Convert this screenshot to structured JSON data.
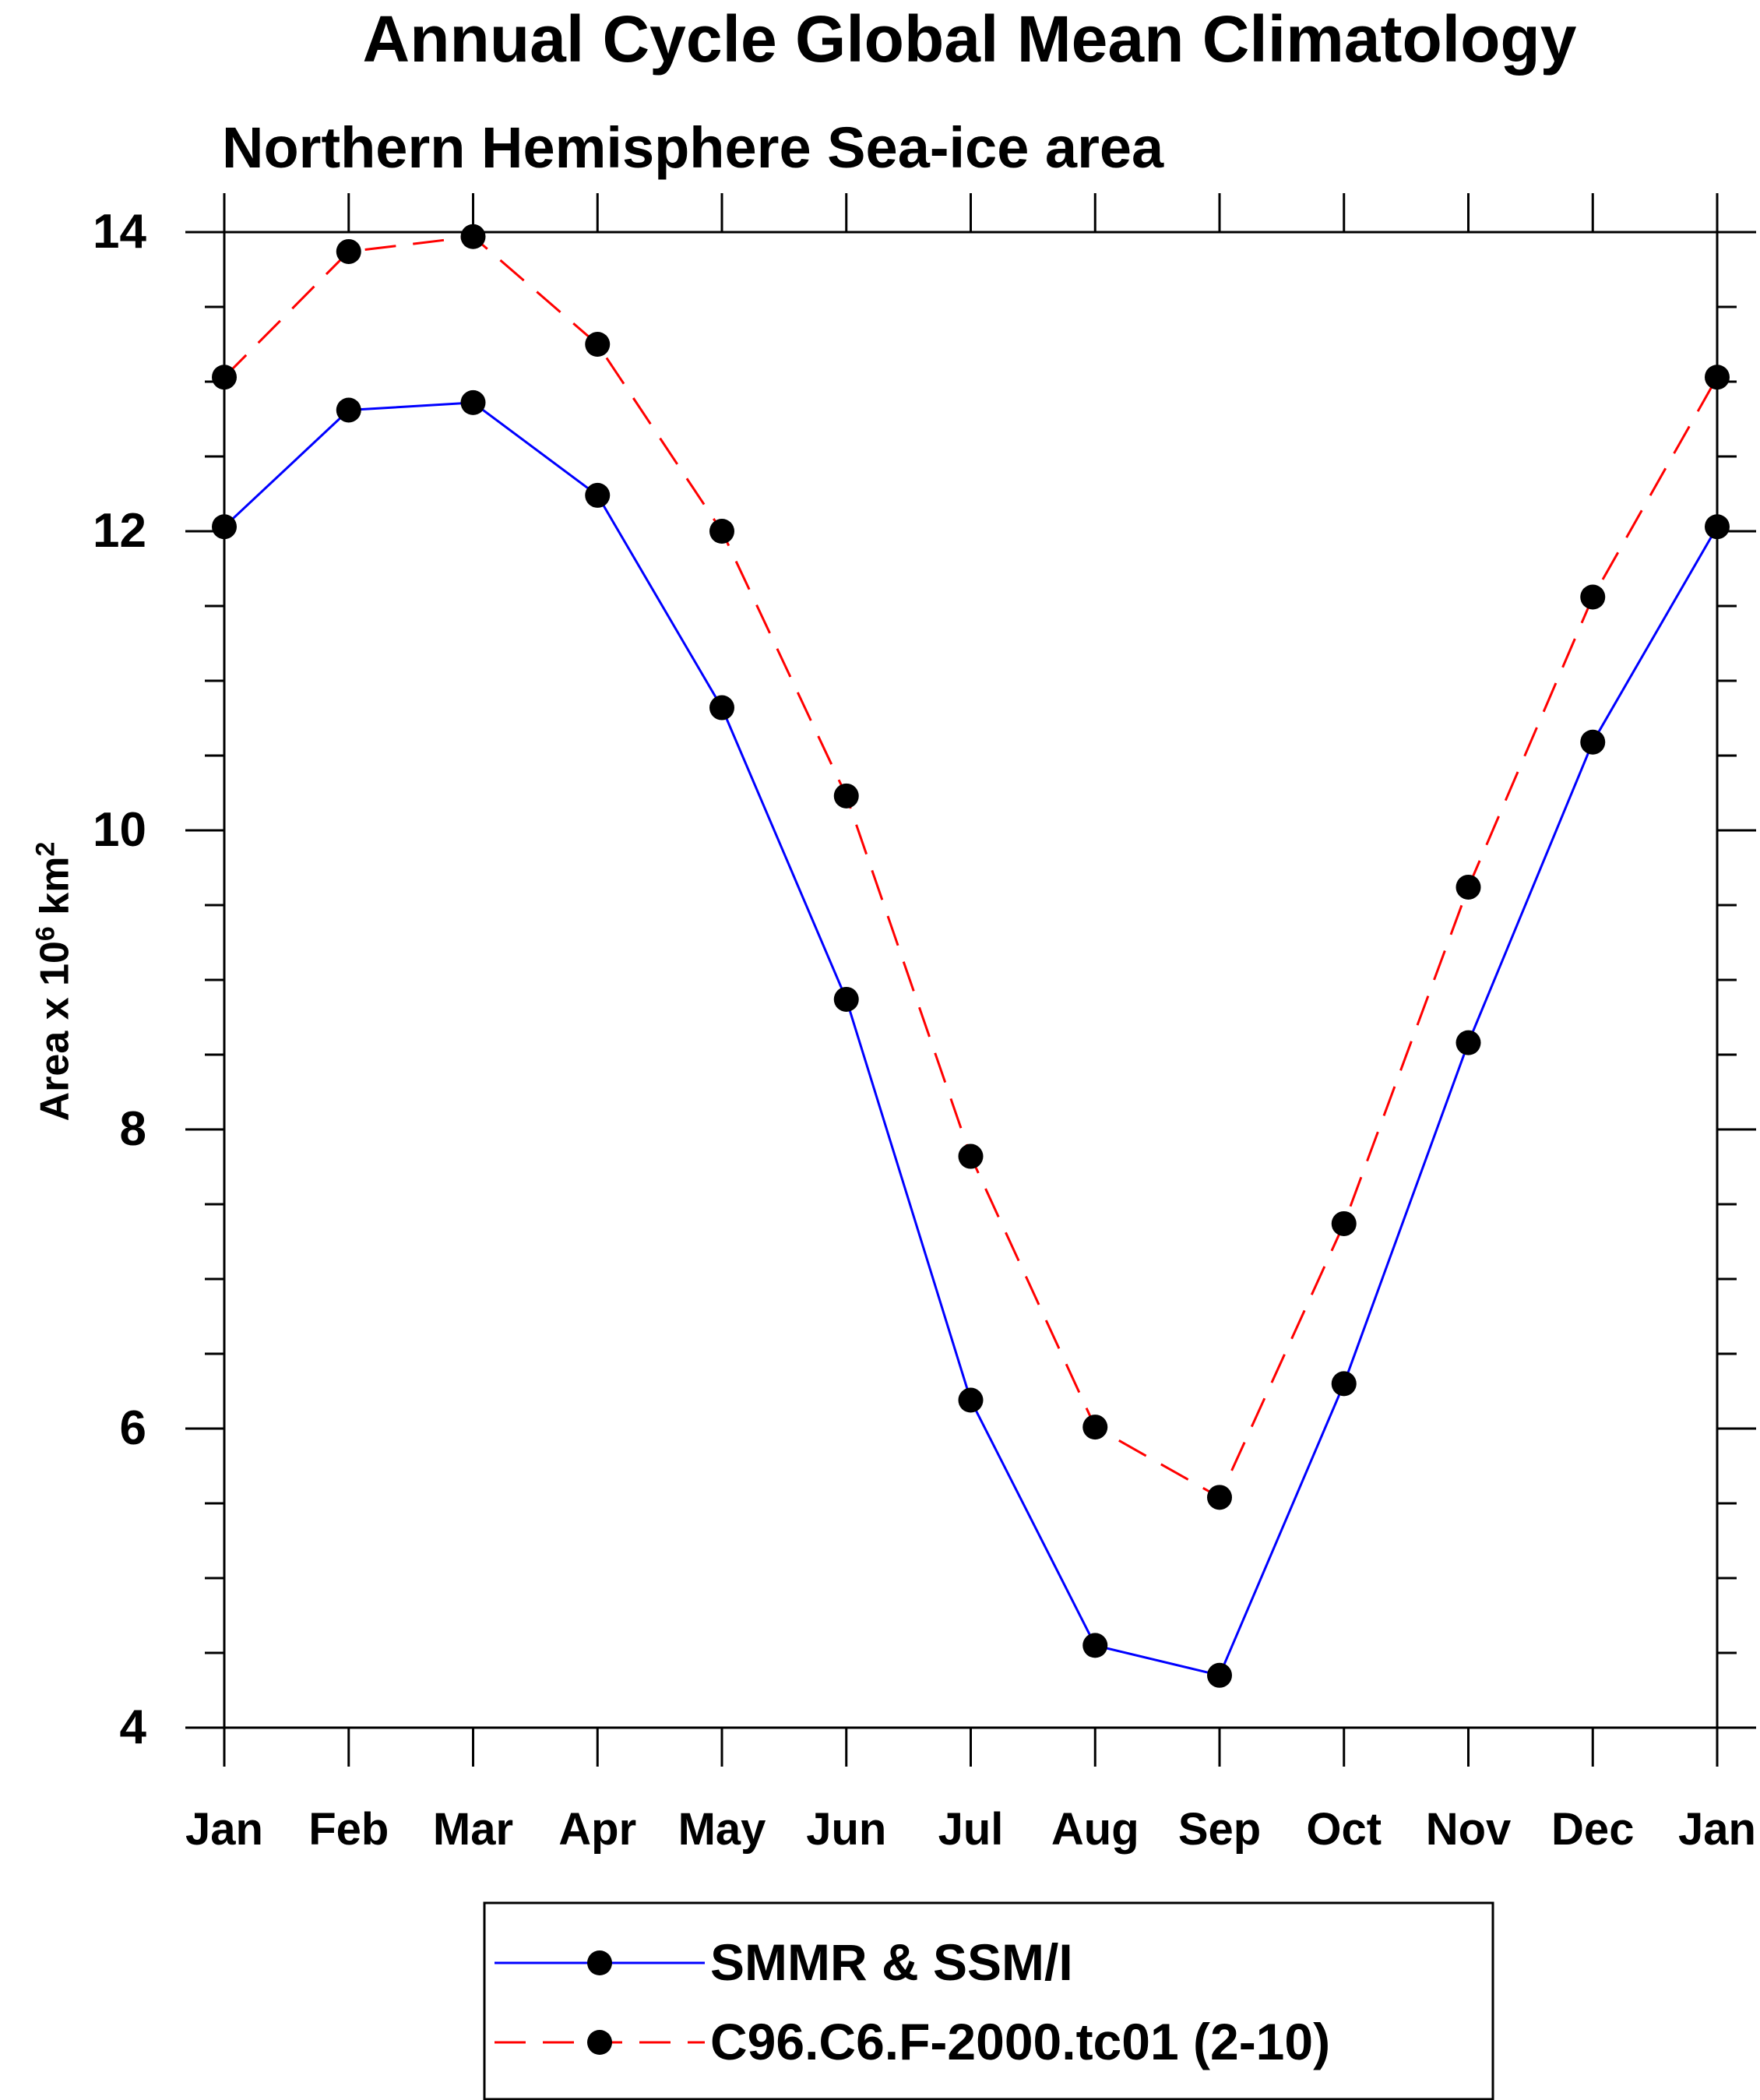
{
  "chart_data": {
    "type": "line",
    "title": "Annual Cycle Global Mean Climatology",
    "subtitle": "Northern Hemisphere Sea-ice area",
    "ylabel_prefix": "Area x 10",
    "ylabel_exp": "6",
    "ylabel_unit": " km",
    "ylabel_unit_exp": "2",
    "xlabel": "",
    "categories": [
      "Jan",
      "Feb",
      "Mar",
      "Apr",
      "May",
      "Jun",
      "Jul",
      "Aug",
      "Sep",
      "Oct",
      "Nov",
      "Dec",
      "Jan"
    ],
    "ylim": [
      4,
      14
    ],
    "yticks": [
      4,
      6,
      8,
      10,
      12,
      14
    ],
    "yminor_step": 0.5,
    "grid": false,
    "legend_position": "bottom-center",
    "series": [
      {
        "name": "SMMR & SSM/I",
        "color": "#0000ff",
        "dash": "solid",
        "values": [
          12.03,
          12.81,
          12.86,
          12.24,
          10.82,
          8.87,
          6.19,
          4.55,
          4.35,
          6.3,
          8.58,
          10.59,
          12.03
        ]
      },
      {
        "name": "C96.C6.F-2000.tc01 (2-10)",
        "color": "#ff0000",
        "dash": "dashed",
        "values": [
          13.03,
          13.87,
          13.97,
          13.25,
          12.0,
          10.23,
          7.82,
          6.01,
          5.54,
          7.37,
          9.62,
          11.56,
          13.03
        ]
      }
    ]
  }
}
